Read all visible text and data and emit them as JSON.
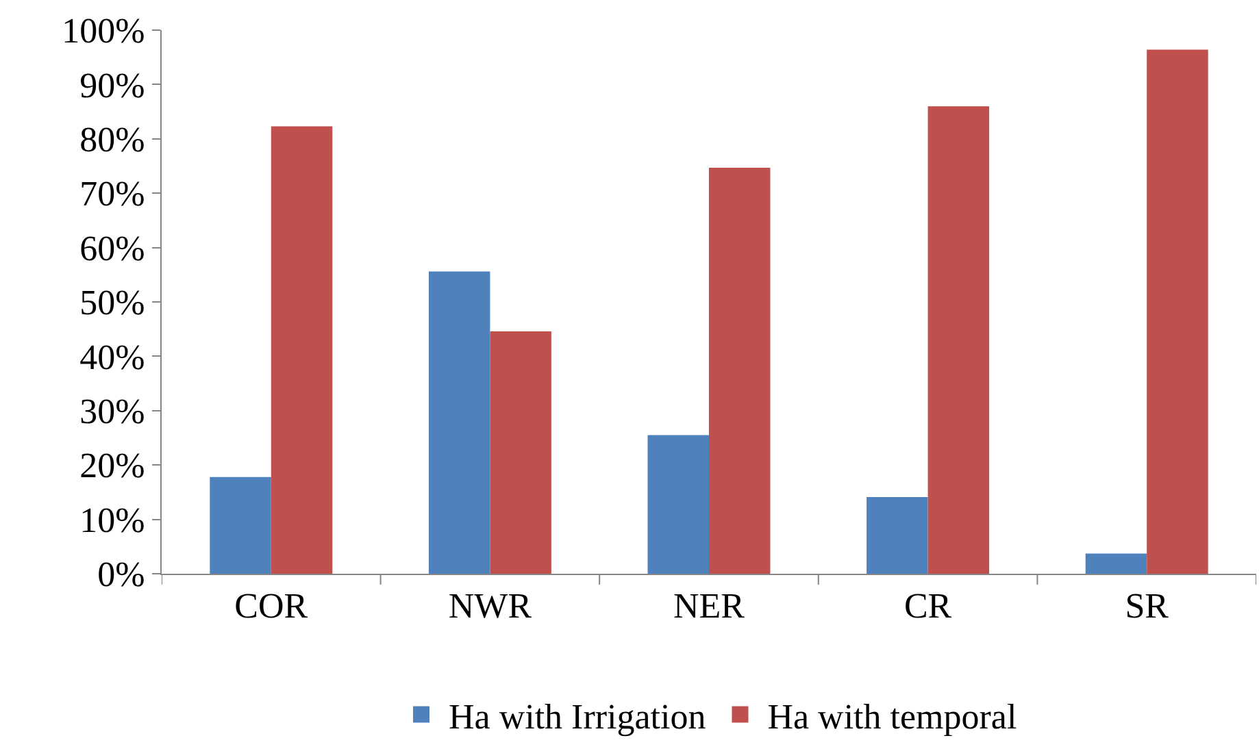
{
  "chart_data": {
    "type": "bar",
    "categories": [
      "COR",
      "NWR",
      "NER",
      "CR",
      "SR"
    ],
    "series": [
      {
        "name": "Ha with Irrigation",
        "color": "#4f81bd",
        "values": [
          17.8,
          55.6,
          25.5,
          14.1,
          3.7
        ]
      },
      {
        "name": "Ha with temporal",
        "color": "#c0504d",
        "values": [
          82.3,
          44.6,
          74.7,
          86.0,
          96.4
        ]
      }
    ],
    "ylim": [
      0,
      100
    ],
    "yticks": [
      {
        "value": 0,
        "label": "0%"
      },
      {
        "value": 10,
        "label": "10%"
      },
      {
        "value": 20,
        "label": "20%"
      },
      {
        "value": 30,
        "label": "30%"
      },
      {
        "value": 40,
        "label": "40%"
      },
      {
        "value": 50,
        "label": "50%"
      },
      {
        "value": 60,
        "label": "60%"
      },
      {
        "value": 70,
        "label": "70%"
      },
      {
        "value": 80,
        "label": "80%"
      },
      {
        "value": 90,
        "label": "90%"
      },
      {
        "value": 100,
        "label": "100%"
      }
    ],
    "grid": false,
    "legend": "bottom"
  }
}
